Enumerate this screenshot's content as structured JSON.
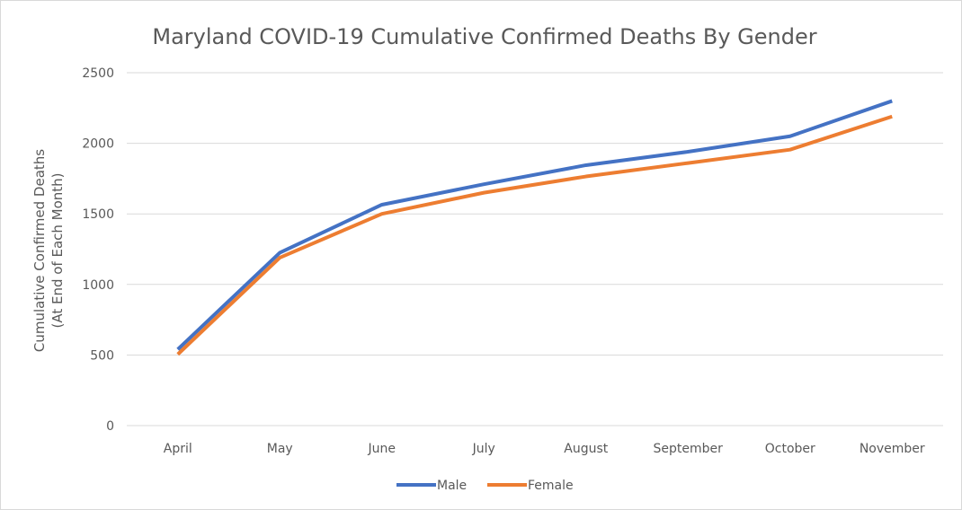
{
  "chart_data": {
    "type": "line",
    "title": "Maryland COVID-19 Cumulative Confirmed Deaths By Gender",
    "ylabel_lines": [
      "Cumulative Confirmed Deaths",
      "(At End of Each Month)"
    ],
    "xlabel": "",
    "categories": [
      "April",
      "May",
      "June",
      "July",
      "August",
      "September",
      "October",
      "November"
    ],
    "ylim": [
      0,
      2500
    ],
    "yticks": [
      0,
      500,
      1000,
      1500,
      2000,
      2500
    ],
    "grid": true,
    "legend_position": "bottom",
    "series": [
      {
        "name": "Male",
        "color": "#4472C4",
        "values": [
          540,
          1225,
          1565,
          1710,
          1845,
          1940,
          2050,
          2300
        ]
      },
      {
        "name": "Female",
        "color": "#ED7D31",
        "values": [
          505,
          1190,
          1500,
          1650,
          1765,
          1860,
          1955,
          2190
        ]
      }
    ]
  }
}
